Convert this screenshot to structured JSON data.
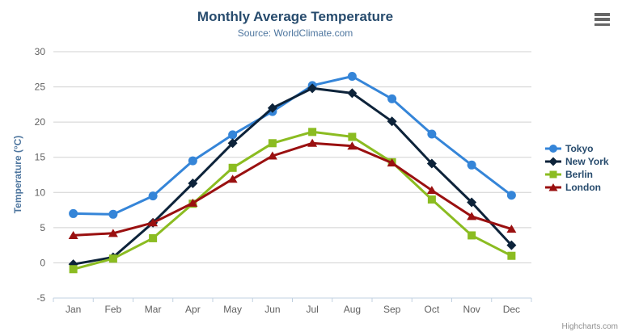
{
  "page": {
    "credits": "Highcharts.com",
    "context_menu_icon": "hamburger-icon"
  },
  "style": {
    "background": "#ffffff",
    "title_color": "#274b6d",
    "subtitle_color": "#4d759e",
    "axis_title_color": "#4d759e",
    "tick_label_color": "#606060",
    "legend_text_color": "#274b6d",
    "grid_color": "#d0d0d0",
    "axis_line_color": "#c0d0e0",
    "credits_color": "#909090",
    "menu_icon_color": "#666666"
  },
  "chart_data": {
    "type": "line",
    "title": "Monthly Average Temperature",
    "subtitle": "Source: WorldClimate.com",
    "categories": [
      "Jan",
      "Feb",
      "Mar",
      "Apr",
      "May",
      "Jun",
      "Jul",
      "Aug",
      "Sep",
      "Oct",
      "Nov",
      "Dec"
    ],
    "xlabel": "",
    "ylabel": "Temperature (°C)",
    "ylim": [
      -5,
      30
    ],
    "ytick_interval": 5,
    "grid": true,
    "legend_position": "right-middle",
    "series": [
      {
        "name": "Tokyo",
        "color": "#3585d8",
        "marker": "circle",
        "values": [
          7.0,
          6.9,
          9.5,
          14.5,
          18.2,
          21.5,
          25.2,
          26.5,
          23.3,
          18.3,
          13.9,
          9.6
        ]
      },
      {
        "name": "New York",
        "color": "#0d233a",
        "marker": "diamond",
        "values": [
          -0.2,
          0.8,
          5.7,
          11.3,
          17.0,
          22.0,
          24.8,
          24.1,
          20.1,
          14.1,
          8.6,
          2.5
        ]
      },
      {
        "name": "Berlin",
        "color": "#8bbc21",
        "marker": "square",
        "values": [
          -0.9,
          0.6,
          3.5,
          8.4,
          13.5,
          17.0,
          18.6,
          17.9,
          14.3,
          9.0,
          3.9,
          1.0
        ]
      },
      {
        "name": "London",
        "color": "#9a1010",
        "marker": "triangle",
        "values": [
          3.9,
          4.2,
          5.7,
          8.5,
          11.9,
          15.2,
          17.0,
          16.6,
          14.2,
          10.3,
          6.6,
          4.8
        ]
      }
    ]
  }
}
